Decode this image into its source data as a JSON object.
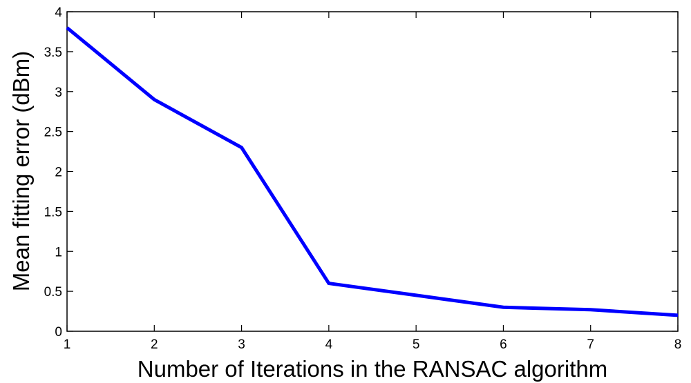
{
  "chart_data": {
    "type": "line",
    "xlabel": "Number of Iterations in the RANSAC algorithm",
    "ylabel": "Mean fitting error (dBm)",
    "x": [
      1,
      2,
      3,
      4,
      5,
      6,
      7,
      8
    ],
    "series": [
      {
        "values": [
          3.8,
          2.9,
          2.3,
          0.6,
          0.45,
          0.3,
          0.27,
          0.2
        ],
        "color": "#0000ff"
      }
    ],
    "xlim": [
      1,
      8
    ],
    "ylim": [
      0,
      4
    ],
    "xticks": [
      1,
      2,
      3,
      4,
      5,
      6,
      7,
      8
    ],
    "xtick_labels": [
      "1",
      "2",
      "3",
      "4",
      "5",
      "6",
      "7",
      "8"
    ],
    "yticks": [
      0,
      0.5,
      1,
      1.5,
      2,
      2.5,
      3,
      3.5,
      4
    ],
    "ytick_labels": [
      "0",
      "0.5",
      "1",
      "1.5",
      "2",
      "2.5",
      "3",
      "3.5",
      "4"
    ],
    "grid": false,
    "legend": "none"
  }
}
